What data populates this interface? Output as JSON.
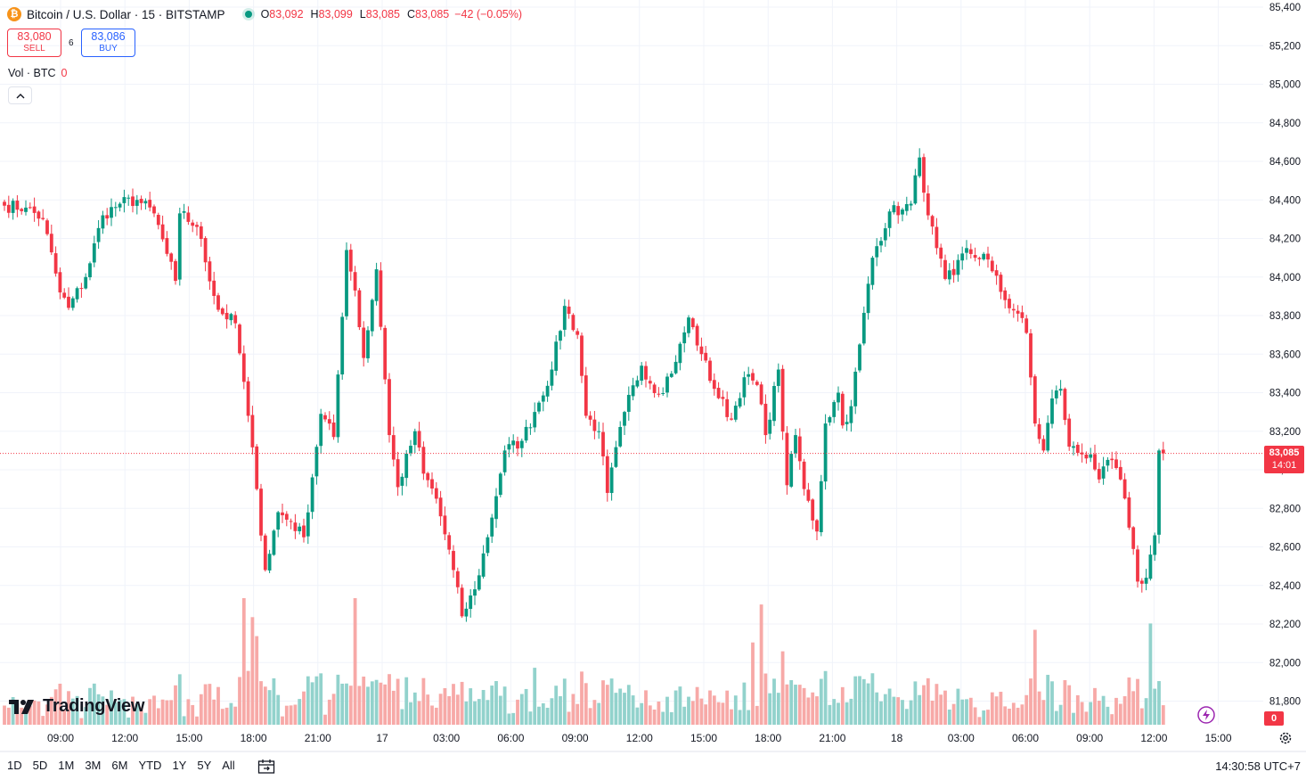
{
  "header": {
    "symbol_title": "Bitcoin / U.S. Dollar · 15 · BITSTAMP",
    "logo_glyph": "₿",
    "ohlc": {
      "o_label": "O",
      "o": "83,092",
      "h_label": "H",
      "h": "83,099",
      "l_label": "L",
      "l": "83,085",
      "c_label": "C",
      "c": "83,085",
      "change": "−42 (−0.05%)"
    }
  },
  "trade": {
    "sell_price": "83,080",
    "sell_label": "SELL",
    "spread": "6",
    "buy_price": "83,086",
    "buy_label": "BUY"
  },
  "volume_legend": {
    "label": "Vol · BTC",
    "value": "0"
  },
  "brand": {
    "name": "TradingView"
  },
  "price_marker": {
    "price": "83,085",
    "countdown": "14:01"
  },
  "volume_marker": {
    "value": "0"
  },
  "bottom_bar": {
    "ranges": [
      "1D",
      "5D",
      "1M",
      "3M",
      "6M",
      "YTD",
      "1Y",
      "5Y",
      "All"
    ],
    "clock": "14:30:58 UTC+7"
  },
  "colors": {
    "up": "#089981",
    "down": "#f23645",
    "vol_up": "#92d2cc",
    "vol_down": "#f7a9a7",
    "grid": "#f0f3fa"
  },
  "chart_data": {
    "type": "candlestick",
    "interval": "15",
    "y_axis_ticks": [
      81800,
      82000,
      82200,
      82400,
      82600,
      82800,
      83000,
      83200,
      83400,
      83600,
      83800,
      84000,
      84200,
      84400,
      84600,
      84800,
      85000,
      85200,
      85400
    ],
    "y_tick_labels": [
      "81,800",
      "82,000",
      "82,200",
      "82,400",
      "82,600",
      "82,800",
      "83,000",
      "83,200",
      "83,400",
      "83,600",
      "83,800",
      "84,000",
      "84,200",
      "84,400",
      "84,600",
      "84,800",
      "85,000",
      "85,200",
      "85,400"
    ],
    "x_tick_labels": [
      "09:00",
      "12:00",
      "15:00",
      "18:00",
      "21:00",
      "17",
      "03:00",
      "06:00",
      "09:00",
      "12:00",
      "15:00",
      "18:00",
      "21:00",
      "18",
      "03:00",
      "06:00",
      "09:00",
      "12:00",
      "15:00"
    ],
    "ylim": [
      81800,
      85400
    ],
    "last_price": 83085,
    "anchors": [
      [
        0,
        84370
      ],
      [
        5,
        84360
      ],
      [
        9,
        84300
      ],
      [
        13,
        83920
      ],
      [
        15,
        83840
      ],
      [
        19,
        84000
      ],
      [
        23,
        84320
      ],
      [
        27,
        84380
      ],
      [
        31,
        84400
      ],
      [
        35,
        84330
      ],
      [
        38,
        84120
      ],
      [
        40,
        83980
      ],
      [
        41,
        84330
      ],
      [
        45,
        84260
      ],
      [
        50,
        83830
      ],
      [
        54,
        83760
      ],
      [
        57,
        83280
      ],
      [
        59,
        82900
      ],
      [
        61,
        82480
      ],
      [
        64,
        82780
      ],
      [
        67,
        82730
      ],
      [
        70,
        82650
      ],
      [
        74,
        83290
      ],
      [
        77,
        83170
      ],
      [
        80,
        84140
      ],
      [
        82,
        83930
      ],
      [
        84,
        83580
      ],
      [
        87,
        84040
      ],
      [
        90,
        83180
      ],
      [
        92,
        82910
      ],
      [
        96,
        83200
      ],
      [
        98,
        82980
      ],
      [
        101,
        82850
      ],
      [
        105,
        82480
      ],
      [
        107,
        82240
      ],
      [
        110,
        82380
      ],
      [
        113,
        82650
      ],
      [
        117,
        83100
      ],
      [
        121,
        83150
      ],
      [
        124,
        83300
      ],
      [
        128,
        83520
      ],
      [
        131,
        83850
      ],
      [
        134,
        83700
      ],
      [
        136,
        83280
      ],
      [
        139,
        83200
      ],
      [
        141,
        82880
      ],
      [
        145,
        83300
      ],
      [
        149,
        83540
      ],
      [
        153,
        83390
      ],
      [
        157,
        83560
      ],
      [
        160,
        83790
      ],
      [
        163,
        83600
      ],
      [
        166,
        83420
      ],
      [
        170,
        83260
      ],
      [
        173,
        83480
      ],
      [
        176,
        83440
      ],
      [
        178,
        83180
      ],
      [
        181,
        83520
      ],
      [
        183,
        82920
      ],
      [
        185,
        83180
      ],
      [
        187,
        82900
      ],
      [
        190,
        82680
      ],
      [
        192,
        83240
      ],
      [
        195,
        83400
      ],
      [
        196,
        83230
      ],
      [
        198,
        83330
      ],
      [
        200,
        83650
      ],
      [
        203,
        84100
      ],
      [
        207,
        84340
      ],
      [
        210,
        84350
      ],
      [
        212,
        84380
      ],
      [
        214,
        84620
      ],
      [
        216,
        84320
      ],
      [
        218,
        84150
      ],
      [
        220,
        83990
      ],
      [
        222,
        84010
      ],
      [
        225,
        84150
      ],
      [
        227,
        84100
      ],
      [
        229,
        84120
      ],
      [
        231,
        84030
      ],
      [
        234,
        83880
      ],
      [
        237,
        83810
      ],
      [
        239,
        83710
      ],
      [
        241,
        83240
      ],
      [
        243,
        83100
      ],
      [
        245,
        83370
      ],
      [
        247,
        83420
      ],
      [
        249,
        83120
      ],
      [
        252,
        83080
      ],
      [
        254,
        83080
      ],
      [
        256,
        82950
      ],
      [
        259,
        83050
      ],
      [
        261,
        82950
      ],
      [
        263,
        82700
      ],
      [
        265,
        82420
      ],
      [
        267,
        82440
      ],
      [
        269,
        82660
      ],
      [
        270,
        83100
      ],
      [
        271,
        83085
      ]
    ],
    "volume_spikes": {
      "56": 1.0,
      "58": 0.85,
      "59": 0.7,
      "82": 1.0,
      "124": 0.45,
      "135": 0.42,
      "175": 0.65,
      "177": 0.95,
      "182": 0.58,
      "241": 0.75,
      "268": 0.8
    }
  }
}
